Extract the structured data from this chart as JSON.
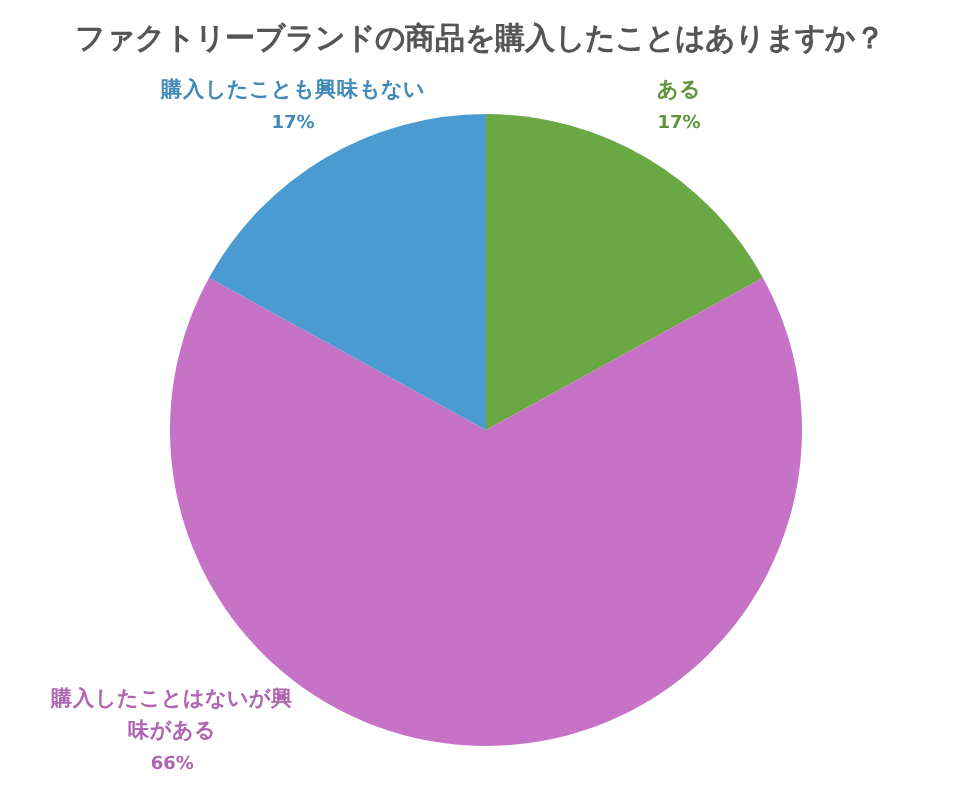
{
  "chart_data": {
    "type": "pie",
    "title": "ファクトリーブランドの商品を購入したことはありますか？",
    "categories": [
      "ある",
      "購入したことはないが興味がある",
      "購入したことも興味もない"
    ],
    "values": [
      17,
      66,
      17
    ],
    "value_labels": [
      "17%",
      "66%",
      "17%"
    ],
    "colors": [
      "#6aa843",
      "#c672c6",
      "#4a9bd1"
    ],
    "legend": false
  }
}
